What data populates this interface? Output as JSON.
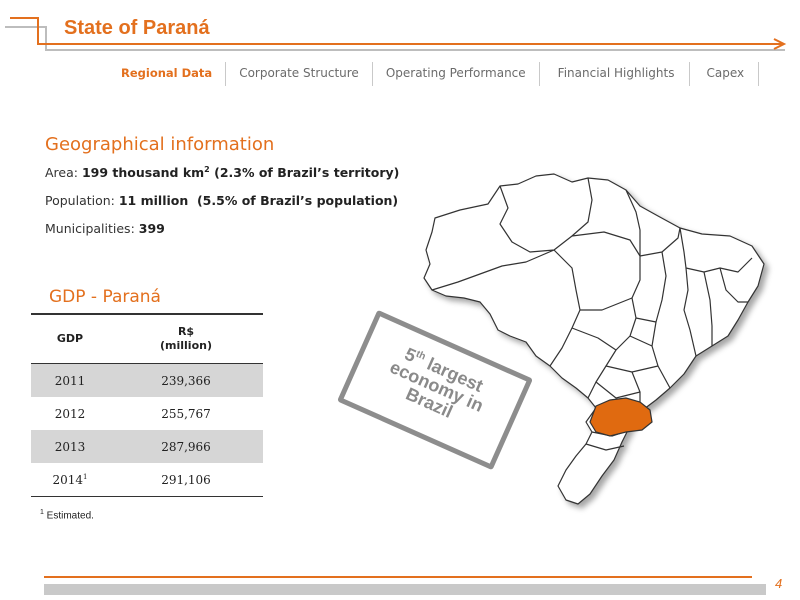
{
  "header": {
    "title": "State of Paraná"
  },
  "nav": {
    "tabs": [
      {
        "label": "Regional Data",
        "active": true
      },
      {
        "label": "Corporate Structure",
        "active": false
      },
      {
        "label": "Operating Performance",
        "active": false
      },
      {
        "label": "Financial Highlights",
        "active": false
      },
      {
        "label": "Capex",
        "active": false
      }
    ]
  },
  "geo": {
    "heading": "Geographical information",
    "area": {
      "label": "Area: ",
      "value": "199 thousand km",
      "sup": "2",
      "detail": " (2.3% of Brazil’s territory)"
    },
    "population": {
      "label": "Population: ",
      "value": "11 million  (5.5% of Brazil’s population)"
    },
    "municipalities": {
      "label": "Municipalities: ",
      "value": "399"
    }
  },
  "gdp": {
    "heading": "GDP - Paraná",
    "col1_header": "GDP",
    "col2_header_line1": "R$",
    "col2_header_line2": "(million)",
    "rows": [
      {
        "year": "2011",
        "mark": "",
        "value": "239,366"
      },
      {
        "year": "2012",
        "mark": "",
        "value": "255,767"
      },
      {
        "year": "2013",
        "mark": "",
        "value": "287,966"
      },
      {
        "year": "2014",
        "mark": "1",
        "value": "291,106"
      }
    ]
  },
  "footnote": {
    "mark": "1",
    "text": " Estimated."
  },
  "stamp": {
    "line1_pre": "5",
    "line1_sup": "th",
    "line1_post": " largest",
    "line2": "economy in",
    "line3": "Brazil"
  },
  "colors": {
    "accent": "#e3701e",
    "highlight_state": "#e06a10",
    "shade": "#d6d6d6"
  },
  "page_number": "4"
}
